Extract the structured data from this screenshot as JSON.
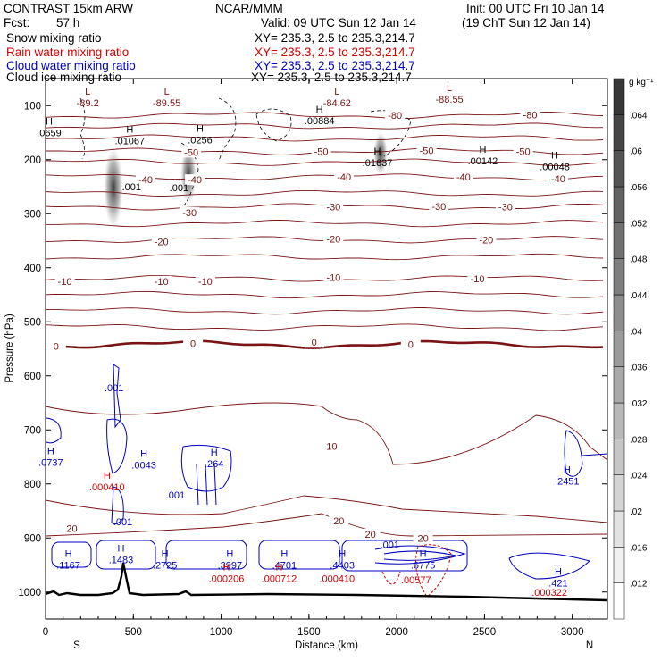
{
  "header": {
    "model": "CONTRAST 15km ARW",
    "org": "NCAR/MMM",
    "init": "Init: 00 UTC Fri 10 Jan 14",
    "fcst_label": "Fcst:",
    "fcst_value": "57 h",
    "valid": "Valid: 09 UTC Sun 12 Jan 14",
    "valid_local": "(19 ChT Sun 12 Jan 14)"
  },
  "fields": [
    {
      "name": "Snow mixing ratio",
      "xy": "XY= 235.3,  2.5 to 235.3,214.7",
      "color": "#000000"
    },
    {
      "name": "Rain water mixing ratio",
      "xy": "XY= 235.3,  2.5 to 235.3,214.7",
      "color": "#d00000"
    },
    {
      "name": "Cloud water mixing ratio",
      "xy": "XY= 235.3,  2.5 to 235.3,214.7",
      "color": "#0000c0"
    },
    {
      "name": "Cloud ice mixing ratio",
      "xy": "XY= 235.3,  2.5 to 235.3,214.7",
      "color": "#000000"
    }
  ],
  "chart_data": {
    "type": "cross-section",
    "xlabel": "Distance (km)",
    "ylabel": "Pressure (hPa)",
    "xlim": [
      0,
      3200
    ],
    "ylim": [
      1050,
      50
    ],
    "x_ticks": [
      0,
      500,
      1000,
      1500,
      2000,
      2500,
      3000
    ],
    "y_ticks": [
      100,
      200,
      300,
      400,
      500,
      600,
      700,
      800,
      900,
      1000
    ],
    "endpoints": {
      "left": "S",
      "right": "N"
    },
    "colorbar": {
      "unit": "g kg⁻¹",
      "ticks": [
        ".012",
        ".016",
        ".02",
        ".024",
        ".028",
        ".032",
        ".036",
        ".04",
        ".044",
        ".048",
        ".052",
        ".056",
        ".06",
        ".064"
      ]
    },
    "temperature_labels": [
      {
        "text": "-80",
        "x": 1990,
        "p": 118
      },
      {
        "text": "-80",
        "x": 2760,
        "p": 117
      },
      {
        "text": "-50",
        "x": 830,
        "p": 186
      },
      {
        "text": "-50",
        "x": 1570,
        "p": 185
      },
      {
        "text": "-50",
        "x": 2170,
        "p": 183
      },
      {
        "text": "-50",
        "x": 2720,
        "p": 185
      },
      {
        "text": "-40",
        "x": 570,
        "p": 237
      },
      {
        "text": "-40",
        "x": 850,
        "p": 237
      },
      {
        "text": "-40",
        "x": 1700,
        "p": 232
      },
      {
        "text": "-40",
        "x": 2380,
        "p": 232
      },
      {
        "text": "-40",
        "x": 2920,
        "p": 235
      },
      {
        "text": "-30",
        "x": 820,
        "p": 298
      },
      {
        "text": "-30",
        "x": 1640,
        "p": 287
      },
      {
        "text": "-30",
        "x": 2240,
        "p": 286
      },
      {
        "text": "-30",
        "x": 2620,
        "p": 287
      },
      {
        "text": "-20",
        "x": 660,
        "p": 352
      },
      {
        "text": "-20",
        "x": 1640,
        "p": 347
      },
      {
        "text": "-20",
        "x": 2510,
        "p": 348
      },
      {
        "text": "-10",
        "x": 110,
        "p": 425
      },
      {
        "text": "-10",
        "x": 660,
        "p": 425
      },
      {
        "text": "-10",
        "x": 910,
        "p": 425
      },
      {
        "text": "-10",
        "x": 1640,
        "p": 418
      },
      {
        "text": "-10",
        "x": 2460,
        "p": 420
      },
      {
        "text": "0",
        "x": 60,
        "p": 545
      },
      {
        "text": "0",
        "x": 840,
        "p": 540
      },
      {
        "text": "0",
        "x": 1530,
        "p": 538
      },
      {
        "text": "0",
        "x": 2080,
        "p": 542
      },
      {
        "text": "10",
        "x": 1630,
        "p": 730
      },
      {
        "text": "20",
        "x": 150,
        "p": 882
      },
      {
        "text": "20",
        "x": 1670,
        "p": 868
      },
      {
        "text": "20",
        "x": 1850,
        "p": 893
      },
      {
        "text": "20",
        "x": 2150,
        "p": 900
      }
    ],
    "extrema": [
      {
        "mark": "L",
        "text": "-89.2",
        "x": 240,
        "p": 95,
        "color": "#7a1414"
      },
      {
        "mark": "L",
        "text": "-89.55",
        "x": 690,
        "p": 95,
        "color": "#7a1414"
      },
      {
        "mark": "L",
        "text": "-84.62",
        "x": 1660,
        "p": 95,
        "color": "#7a1414"
      },
      {
        "mark": "L",
        "text": "-88.55",
        "x": 2300,
        "p": 88,
        "color": "#7a1414"
      },
      {
        "mark": "H",
        "text": ".0659",
        "x": 20,
        "p": 150,
        "color": "#000000"
      },
      {
        "mark": "H",
        "text": ".01067",
        "x": 480,
        "p": 165,
        "color": "#000000"
      },
      {
        "mark": "H",
        "text": ".0256",
        "x": 880,
        "p": 163,
        "color": "#000000"
      },
      {
        "mark": "H",
        "text": ".00884",
        "x": 1560,
        "p": 128,
        "color": "#000000"
      },
      {
        "mark": "H",
        "text": ".01637",
        "x": 1890,
        "p": 205,
        "color": "#000000"
      },
      {
        "mark": "H",
        "text": ".00142",
        "x": 2490,
        "p": 202,
        "color": "#000000"
      },
      {
        "mark": "H",
        "text": ".00048",
        "x": 2900,
        "p": 213,
        "color": "#000000"
      },
      {
        "mark": "",
        "text": ".001",
        "x": 490,
        "p": 250,
        "color": "#000000"
      },
      {
        "mark": "",
        "text": ".001",
        "x": 760,
        "p": 252,
        "color": "#000000"
      },
      {
        "mark": "",
        "text": ".001",
        "x": 390,
        "p": 622,
        "color": "#0000c0"
      },
      {
        "mark": "H",
        "text": ".0737",
        "x": 30,
        "p": 760,
        "color": "#0000c0"
      },
      {
        "mark": "H",
        "text": ".0043",
        "x": 560,
        "p": 765,
        "color": "#0000c0"
      },
      {
        "mark": "H",
        "text": ".264",
        "x": 960,
        "p": 762,
        "color": "#0000c0"
      },
      {
        "mark": "H",
        "text": ".000410",
        "x": 350,
        "p": 805,
        "color": "#d00000"
      },
      {
        "mark": "",
        "text": ".001",
        "x": 740,
        "p": 820,
        "color": "#0000c0"
      },
      {
        "mark": "",
        "text": ".001",
        "x": 440,
        "p": 870,
        "color": "#0000c0"
      },
      {
        "mark": "H",
        "text": ".2451",
        "x": 2970,
        "p": 795,
        "color": "#0000c0"
      },
      {
        "mark": "H",
        "text": ".1167",
        "x": 130,
        "p": 950,
        "color": "#0000c0"
      },
      {
        "mark": "H",
        "text": ".1483",
        "x": 430,
        "p": 940,
        "color": "#0000c0"
      },
      {
        "mark": "H",
        "text": ".2725",
        "x": 680,
        "p": 950,
        "color": "#0000c0"
      },
      {
        "mark": "H",
        "text": ".3997",
        "x": 1050,
        "p": 950,
        "color": "#0000c0"
      },
      {
        "mark": "H",
        "text": ".000206",
        "x": 1030,
        "p": 975,
        "color": "#d00000"
      },
      {
        "mark": "H",
        "text": ".4701",
        "x": 1360,
        "p": 950,
        "color": "#0000c0"
      },
      {
        "mark": "H",
        "text": ".000712",
        "x": 1330,
        "p": 975,
        "color": "#d00000"
      },
      {
        "mark": "H",
        "text": ".4403",
        "x": 1690,
        "p": 950,
        "color": "#0000c0"
      },
      {
        "mark": "",
        "text": ".000410",
        "x": 1660,
        "p": 975,
        "color": "#d00000"
      },
      {
        "mark": "",
        "text": ".001",
        "x": 1960,
        "p": 912,
        "color": "#0000c0"
      },
      {
        "mark": "H",
        "text": ".6775",
        "x": 2150,
        "p": 950,
        "color": "#0000c0"
      },
      {
        "mark": "",
        "text": ".00577",
        "x": 2110,
        "p": 977,
        "color": "#d00000"
      },
      {
        "mark": "H",
        "text": ".421",
        "x": 2920,
        "p": 983,
        "color": "#0000c0"
      },
      {
        "mark": "",
        "text": ".000322",
        "x": 2870,
        "p": 1000,
        "color": "#d00000"
      }
    ]
  },
  "colors": {
    "temperature": "#7a1414",
    "freezing_level": "#7a1414",
    "snow": "#000000",
    "rain": "#d00000",
    "cloud_water": "#0000c0",
    "terrain": "#000000"
  }
}
